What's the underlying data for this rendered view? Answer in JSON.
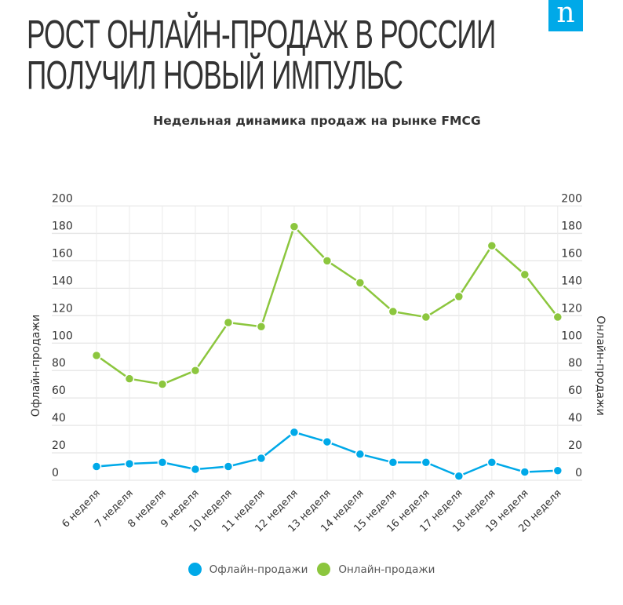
{
  "header": {
    "title_line1": "РОСТ ОНЛАЙН-ПРОДАЖ В РОССИИ",
    "title_line2": "ПОЛУЧИЛ НОВЫЙ ИМПУЛЬС",
    "logo_letter": "n",
    "logo_color": "#00a9e8"
  },
  "chart_data": {
    "type": "line",
    "title": "Недельная динамика продаж на рынке FMCG",
    "xlabel": "",
    "ylabel_left": "Офлайн-продажи",
    "ylabel_right": "Онлайн-продажи",
    "ylim": [
      0,
      200
    ],
    "yticks": [
      0,
      20,
      40,
      60,
      80,
      100,
      120,
      140,
      160,
      180,
      200
    ],
    "grid": true,
    "legend_position": "bottom",
    "categories": [
      "6 неделя",
      "7 неделя",
      "8 неделя",
      "9 неделя",
      "10 неделя",
      "11 неделя",
      "12 неделя",
      "13 неделя",
      "14 неделя",
      "15 неделя",
      "16 неделя",
      "17 неделя",
      "18 неделя",
      "19 неделя",
      "20 неделя"
    ],
    "series": [
      {
        "name": "Офлайн-продажи",
        "axis": "left",
        "color": "#00a9e8",
        "values": [
          10,
          12,
          13,
          8,
          10,
          16,
          35,
          28,
          19,
          13,
          13,
          3,
          13,
          6,
          7
        ]
      },
      {
        "name": "Онлайн-продажи",
        "axis": "right",
        "color": "#8cc63e",
        "values": [
          91,
          74,
          70,
          80,
          115,
          112,
          185,
          160,
          144,
          123,
          119,
          134,
          171,
          150,
          119
        ]
      }
    ]
  }
}
